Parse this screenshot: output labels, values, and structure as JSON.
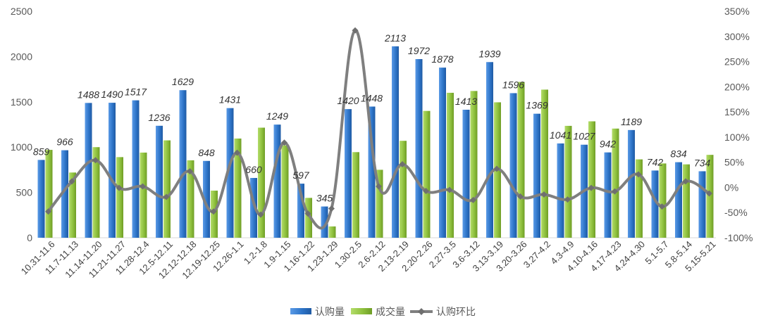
{
  "chart_data": {
    "type": "bar",
    "categories": [
      "10.31-11.6",
      "11.7-11.13",
      "11.14-11.20",
      "11.21-11.27",
      "11.28-12.4",
      "12.5-12.11",
      "12.12-12.18",
      "12.19-12.25",
      "12.26-1.1",
      "1.2-1.8",
      "1.9-1.15",
      "1.16-1.22",
      "1.23-1.29",
      "1.30-2.5",
      "2.6-2.12",
      "2.13-2.19",
      "2.20-2.26",
      "2.27-3.5",
      "3.6-3.12",
      "3.13-3.19",
      "3.20-3.26",
      "3.27-4.2",
      "4.3-4.9",
      "4.10-4.16",
      "4.17-4.23",
      "4.24-4.30",
      "5.1-5.7",
      "5.8-5.14",
      "5.15-5.21"
    ],
    "series": [
      {
        "name": "认购量",
        "kind": "bar",
        "axis": "left",
        "color": "#2e75c9",
        "values": [
          859,
          966,
          1488,
          1490,
          1517,
          1236,
          1629,
          848,
          1431,
          660,
          1249,
          597,
          345,
          1420,
          1448,
          2113,
          1972,
          1878,
          1413,
          1939,
          1596,
          1369,
          1041,
          1027,
          942,
          1189,
          742,
          834,
          734
        ],
        "labels": [
          "859",
          "966",
          "1488",
          "1490",
          "1517",
          "1236",
          "1629",
          "848",
          "1431",
          "660",
          "1249",
          "597",
          "345",
          "1420",
          "1448",
          "2113",
          "1972",
          "1878",
          "1413",
          "1939",
          "1596",
          "1369",
          "1041",
          "1027",
          "942",
          "1189",
          "742",
          "834",
          "734"
        ]
      },
      {
        "name": "成交量",
        "kind": "bar",
        "axis": "left",
        "color": "#8fc13e",
        "values": [
          970,
          720,
          1000,
          890,
          940,
          1075,
          855,
          520,
          1095,
          1215,
          1020,
          440,
          125,
          945,
          750,
          1070,
          1400,
          1600,
          1620,
          1495,
          1720,
          1635,
          1235,
          1285,
          1205,
          865,
          820,
          810,
          915
        ]
      },
      {
        "name": "认购环比",
        "kind": "line",
        "axis": "right",
        "color": "#7f7f7f",
        "values": [
          -48,
          12,
          54,
          -1,
          2,
          -19,
          32,
          -48,
          69,
          -54,
          89,
          -52,
          -42,
          312,
          2,
          46,
          -7,
          -5,
          -25,
          37,
          -18,
          -14,
          -24,
          -1,
          -8,
          26,
          -38,
          12,
          -12
        ]
      }
    ],
    "y_left": {
      "min": 0,
      "max": 2500,
      "ticks": [
        "0",
        "500",
        "1000",
        "1500",
        "2000",
        "2500"
      ]
    },
    "y_right": {
      "min": -100,
      "max": 350,
      "ticks": [
        "-100%",
        "-50%",
        "0%",
        "50%",
        "100%",
        "150%",
        "200%",
        "250%",
        "300%",
        "350%"
      ]
    },
    "grid": false,
    "legend_position": "bottom"
  }
}
